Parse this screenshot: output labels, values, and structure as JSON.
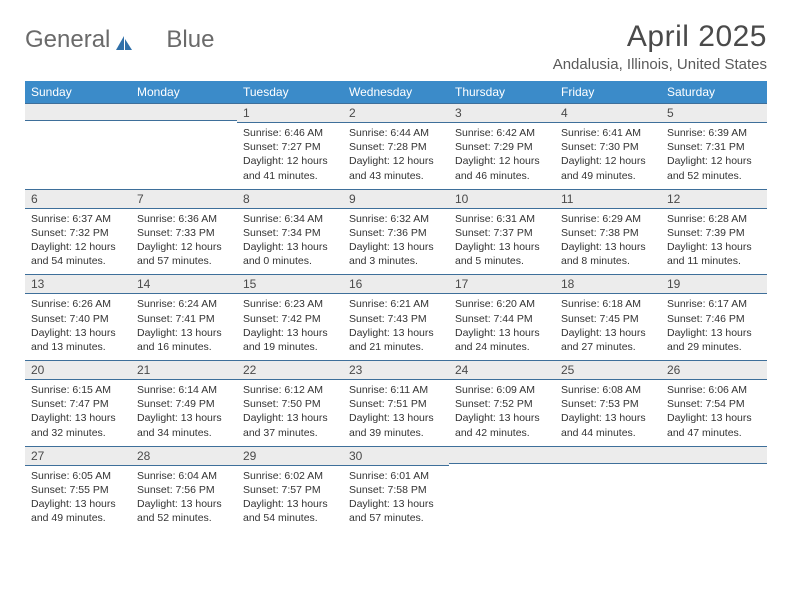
{
  "brand": {
    "name_part1": "General",
    "name_part2": "Blue"
  },
  "title": "April 2025",
  "location": "Andalusia, Illinois, United States",
  "colors": {
    "header_bg": "#3b8bc9",
    "header_text": "#ffffff",
    "daynum_bg": "#ececec",
    "daynum_border": "#3e6f9a",
    "body_text": "#333333",
    "title_text": "#4a4a4a",
    "logo_text": "#6a6a6a",
    "logo_accent": "#2f6fa8"
  },
  "day_headers": [
    "Sunday",
    "Monday",
    "Tuesday",
    "Wednesday",
    "Thursday",
    "Friday",
    "Saturday"
  ],
  "weeks": [
    [
      {
        "day": "",
        "sunrise": "",
        "sunset": "",
        "daylight": ""
      },
      {
        "day": "",
        "sunrise": "",
        "sunset": "",
        "daylight": ""
      },
      {
        "day": "1",
        "sunrise": "Sunrise: 6:46 AM",
        "sunset": "Sunset: 7:27 PM",
        "daylight": "Daylight: 12 hours and 41 minutes."
      },
      {
        "day": "2",
        "sunrise": "Sunrise: 6:44 AM",
        "sunset": "Sunset: 7:28 PM",
        "daylight": "Daylight: 12 hours and 43 minutes."
      },
      {
        "day": "3",
        "sunrise": "Sunrise: 6:42 AM",
        "sunset": "Sunset: 7:29 PM",
        "daylight": "Daylight: 12 hours and 46 minutes."
      },
      {
        "day": "4",
        "sunrise": "Sunrise: 6:41 AM",
        "sunset": "Sunset: 7:30 PM",
        "daylight": "Daylight: 12 hours and 49 minutes."
      },
      {
        "day": "5",
        "sunrise": "Sunrise: 6:39 AM",
        "sunset": "Sunset: 7:31 PM",
        "daylight": "Daylight: 12 hours and 52 minutes."
      }
    ],
    [
      {
        "day": "6",
        "sunrise": "Sunrise: 6:37 AM",
        "sunset": "Sunset: 7:32 PM",
        "daylight": "Daylight: 12 hours and 54 minutes."
      },
      {
        "day": "7",
        "sunrise": "Sunrise: 6:36 AM",
        "sunset": "Sunset: 7:33 PM",
        "daylight": "Daylight: 12 hours and 57 minutes."
      },
      {
        "day": "8",
        "sunrise": "Sunrise: 6:34 AM",
        "sunset": "Sunset: 7:34 PM",
        "daylight": "Daylight: 13 hours and 0 minutes."
      },
      {
        "day": "9",
        "sunrise": "Sunrise: 6:32 AM",
        "sunset": "Sunset: 7:36 PM",
        "daylight": "Daylight: 13 hours and 3 minutes."
      },
      {
        "day": "10",
        "sunrise": "Sunrise: 6:31 AM",
        "sunset": "Sunset: 7:37 PM",
        "daylight": "Daylight: 13 hours and 5 minutes."
      },
      {
        "day": "11",
        "sunrise": "Sunrise: 6:29 AM",
        "sunset": "Sunset: 7:38 PM",
        "daylight": "Daylight: 13 hours and 8 minutes."
      },
      {
        "day": "12",
        "sunrise": "Sunrise: 6:28 AM",
        "sunset": "Sunset: 7:39 PM",
        "daylight": "Daylight: 13 hours and 11 minutes."
      }
    ],
    [
      {
        "day": "13",
        "sunrise": "Sunrise: 6:26 AM",
        "sunset": "Sunset: 7:40 PM",
        "daylight": "Daylight: 13 hours and 13 minutes."
      },
      {
        "day": "14",
        "sunrise": "Sunrise: 6:24 AM",
        "sunset": "Sunset: 7:41 PM",
        "daylight": "Daylight: 13 hours and 16 minutes."
      },
      {
        "day": "15",
        "sunrise": "Sunrise: 6:23 AM",
        "sunset": "Sunset: 7:42 PM",
        "daylight": "Daylight: 13 hours and 19 minutes."
      },
      {
        "day": "16",
        "sunrise": "Sunrise: 6:21 AM",
        "sunset": "Sunset: 7:43 PM",
        "daylight": "Daylight: 13 hours and 21 minutes."
      },
      {
        "day": "17",
        "sunrise": "Sunrise: 6:20 AM",
        "sunset": "Sunset: 7:44 PM",
        "daylight": "Daylight: 13 hours and 24 minutes."
      },
      {
        "day": "18",
        "sunrise": "Sunrise: 6:18 AM",
        "sunset": "Sunset: 7:45 PM",
        "daylight": "Daylight: 13 hours and 27 minutes."
      },
      {
        "day": "19",
        "sunrise": "Sunrise: 6:17 AM",
        "sunset": "Sunset: 7:46 PM",
        "daylight": "Daylight: 13 hours and 29 minutes."
      }
    ],
    [
      {
        "day": "20",
        "sunrise": "Sunrise: 6:15 AM",
        "sunset": "Sunset: 7:47 PM",
        "daylight": "Daylight: 13 hours and 32 minutes."
      },
      {
        "day": "21",
        "sunrise": "Sunrise: 6:14 AM",
        "sunset": "Sunset: 7:49 PM",
        "daylight": "Daylight: 13 hours and 34 minutes."
      },
      {
        "day": "22",
        "sunrise": "Sunrise: 6:12 AM",
        "sunset": "Sunset: 7:50 PM",
        "daylight": "Daylight: 13 hours and 37 minutes."
      },
      {
        "day": "23",
        "sunrise": "Sunrise: 6:11 AM",
        "sunset": "Sunset: 7:51 PM",
        "daylight": "Daylight: 13 hours and 39 minutes."
      },
      {
        "day": "24",
        "sunrise": "Sunrise: 6:09 AM",
        "sunset": "Sunset: 7:52 PM",
        "daylight": "Daylight: 13 hours and 42 minutes."
      },
      {
        "day": "25",
        "sunrise": "Sunrise: 6:08 AM",
        "sunset": "Sunset: 7:53 PM",
        "daylight": "Daylight: 13 hours and 44 minutes."
      },
      {
        "day": "26",
        "sunrise": "Sunrise: 6:06 AM",
        "sunset": "Sunset: 7:54 PM",
        "daylight": "Daylight: 13 hours and 47 minutes."
      }
    ],
    [
      {
        "day": "27",
        "sunrise": "Sunrise: 6:05 AM",
        "sunset": "Sunset: 7:55 PM",
        "daylight": "Daylight: 13 hours and 49 minutes."
      },
      {
        "day": "28",
        "sunrise": "Sunrise: 6:04 AM",
        "sunset": "Sunset: 7:56 PM",
        "daylight": "Daylight: 13 hours and 52 minutes."
      },
      {
        "day": "29",
        "sunrise": "Sunrise: 6:02 AM",
        "sunset": "Sunset: 7:57 PM",
        "daylight": "Daylight: 13 hours and 54 minutes."
      },
      {
        "day": "30",
        "sunrise": "Sunrise: 6:01 AM",
        "sunset": "Sunset: 7:58 PM",
        "daylight": "Daylight: 13 hours and 57 minutes."
      },
      {
        "day": "",
        "sunrise": "",
        "sunset": "",
        "daylight": ""
      },
      {
        "day": "",
        "sunrise": "",
        "sunset": "",
        "daylight": ""
      },
      {
        "day": "",
        "sunrise": "",
        "sunset": "",
        "daylight": ""
      }
    ]
  ]
}
